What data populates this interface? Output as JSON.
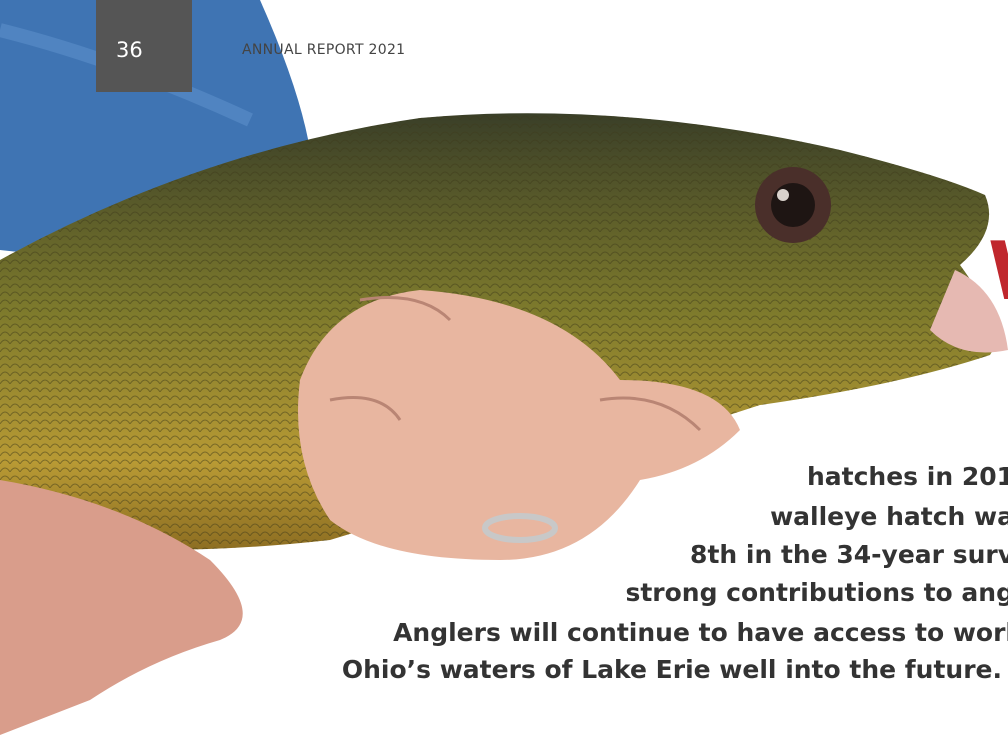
{
  "header": {
    "page_number": "36",
    "running_title": "ANNUAL REPORT 2021"
  },
  "heading_fragment": "W",
  "body_lines": [
    "hatches in 201",
    "walleye hatch wa",
    "8th in the 34-year surv",
    "strong contributions to ang",
    "Anglers will continue to have access to worl",
    "Ohio’s waters of Lake Erie well into the future."
  ]
}
